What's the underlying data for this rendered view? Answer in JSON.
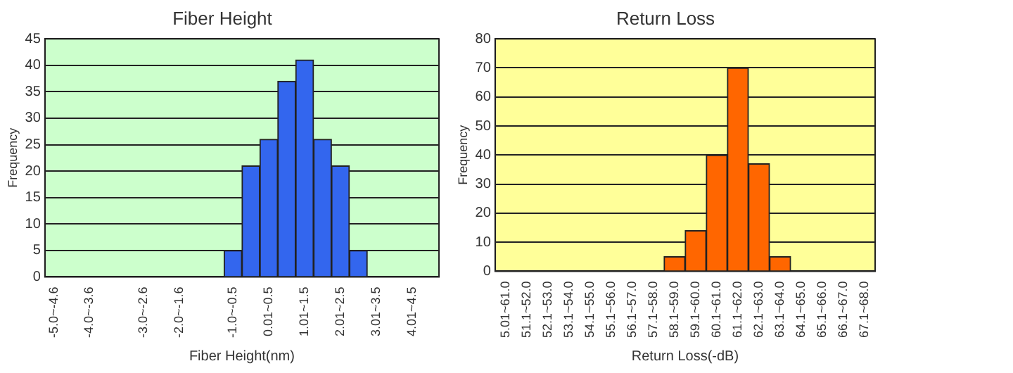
{
  "chart_data": [
    {
      "type": "bar",
      "title": "Fiber Height",
      "xlabel": "Fiber Height(nm)",
      "ylabel": "Frequency",
      "categories": [
        "-5.0~-4.6",
        null,
        "-4.0~-3.6",
        null,
        null,
        "-3.0~-2.6",
        null,
        "-2.0~-1.6",
        null,
        null,
        "-1.0~-0.5",
        null,
        "0.01~0.5",
        null,
        "1.01~1.5",
        null,
        "2.01~2.5",
        null,
        "3.01~3.5",
        null,
        "4.01~4.5",
        null
      ],
      "values": [
        0,
        0,
        0,
        0,
        0,
        0,
        0,
        0,
        0,
        0,
        5,
        21,
        26,
        37,
        41,
        26,
        21,
        5,
        0,
        0,
        0,
        0
      ],
      "color": "#3366ee",
      "ylim": [
        0,
        45
      ],
      "yticks": [
        0,
        5,
        10,
        15,
        20,
        25,
        30,
        35,
        40,
        45
      ],
      "grid": "y",
      "legend": false
    },
    {
      "type": "bar",
      "title": "Return Loss",
      "xlabel": "Return Loss(-dB)",
      "ylabel": "Frequency",
      "categories": [
        "5.01~61.0",
        "51.1~52.0",
        "52.1~53.0",
        "53.1~54.0",
        "54.1~55.0",
        "55.1~56.0",
        "56.1~57.0",
        "57.1~58.0",
        "58.1~59.0",
        "59.1~60.0",
        "60.1~61.0",
        "61.1~62.0",
        "62.1~63.0",
        "63.1~64.0",
        "64.1~65.0",
        "65.1~66.0",
        "66.1~67.0",
        "67.1~68.0"
      ],
      "values": [
        0,
        0,
        0,
        0,
        0,
        0,
        0,
        0,
        5,
        14,
        40,
        70,
        37,
        5,
        0,
        0,
        0,
        0
      ],
      "color": "#ff6600",
      "ylim": [
        0,
        80
      ],
      "yticks": [
        0,
        10,
        20,
        30,
        40,
        50,
        60,
        70,
        80
      ],
      "grid": "y",
      "legend": false
    }
  ]
}
